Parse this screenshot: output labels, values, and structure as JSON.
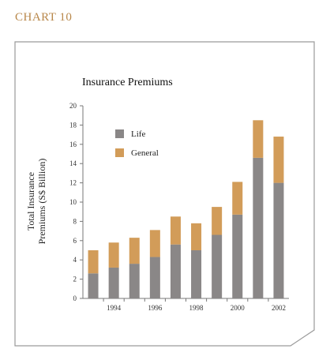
{
  "section_label": "CHART 10",
  "chart_data": {
    "type": "bar",
    "stacked": true,
    "title": "Insurance Premiums",
    "ylabel_line1": "Total Insurance",
    "ylabel_line2": "Premiums (S$ Billion)",
    "xlabel": "",
    "ylim": [
      0,
      20
    ],
    "yticks": [
      0,
      2,
      4,
      6,
      8,
      10,
      12,
      14,
      16,
      18,
      20
    ],
    "categories": [
      "1993",
      "1994",
      "1995",
      "1996",
      "1997",
      "1998",
      "1999",
      "2000",
      "2001",
      "2002"
    ],
    "xtick_labels": [
      "",
      "1994",
      "",
      "1996",
      "",
      "1998",
      "",
      "2000",
      "",
      "2002"
    ],
    "series": [
      {
        "name": "Life",
        "color": "#8a8787",
        "values": [
          2.6,
          3.2,
          3.6,
          4.3,
          5.6,
          5.0,
          6.6,
          8.7,
          14.6,
          12.0
        ]
      },
      {
        "name": "General",
        "color": "#d29c59",
        "values": [
          2.4,
          2.6,
          2.7,
          2.8,
          2.9,
          2.8,
          2.9,
          3.4,
          3.9,
          4.8
        ]
      }
    ],
    "legend_position": "top-left",
    "grid": false
  }
}
